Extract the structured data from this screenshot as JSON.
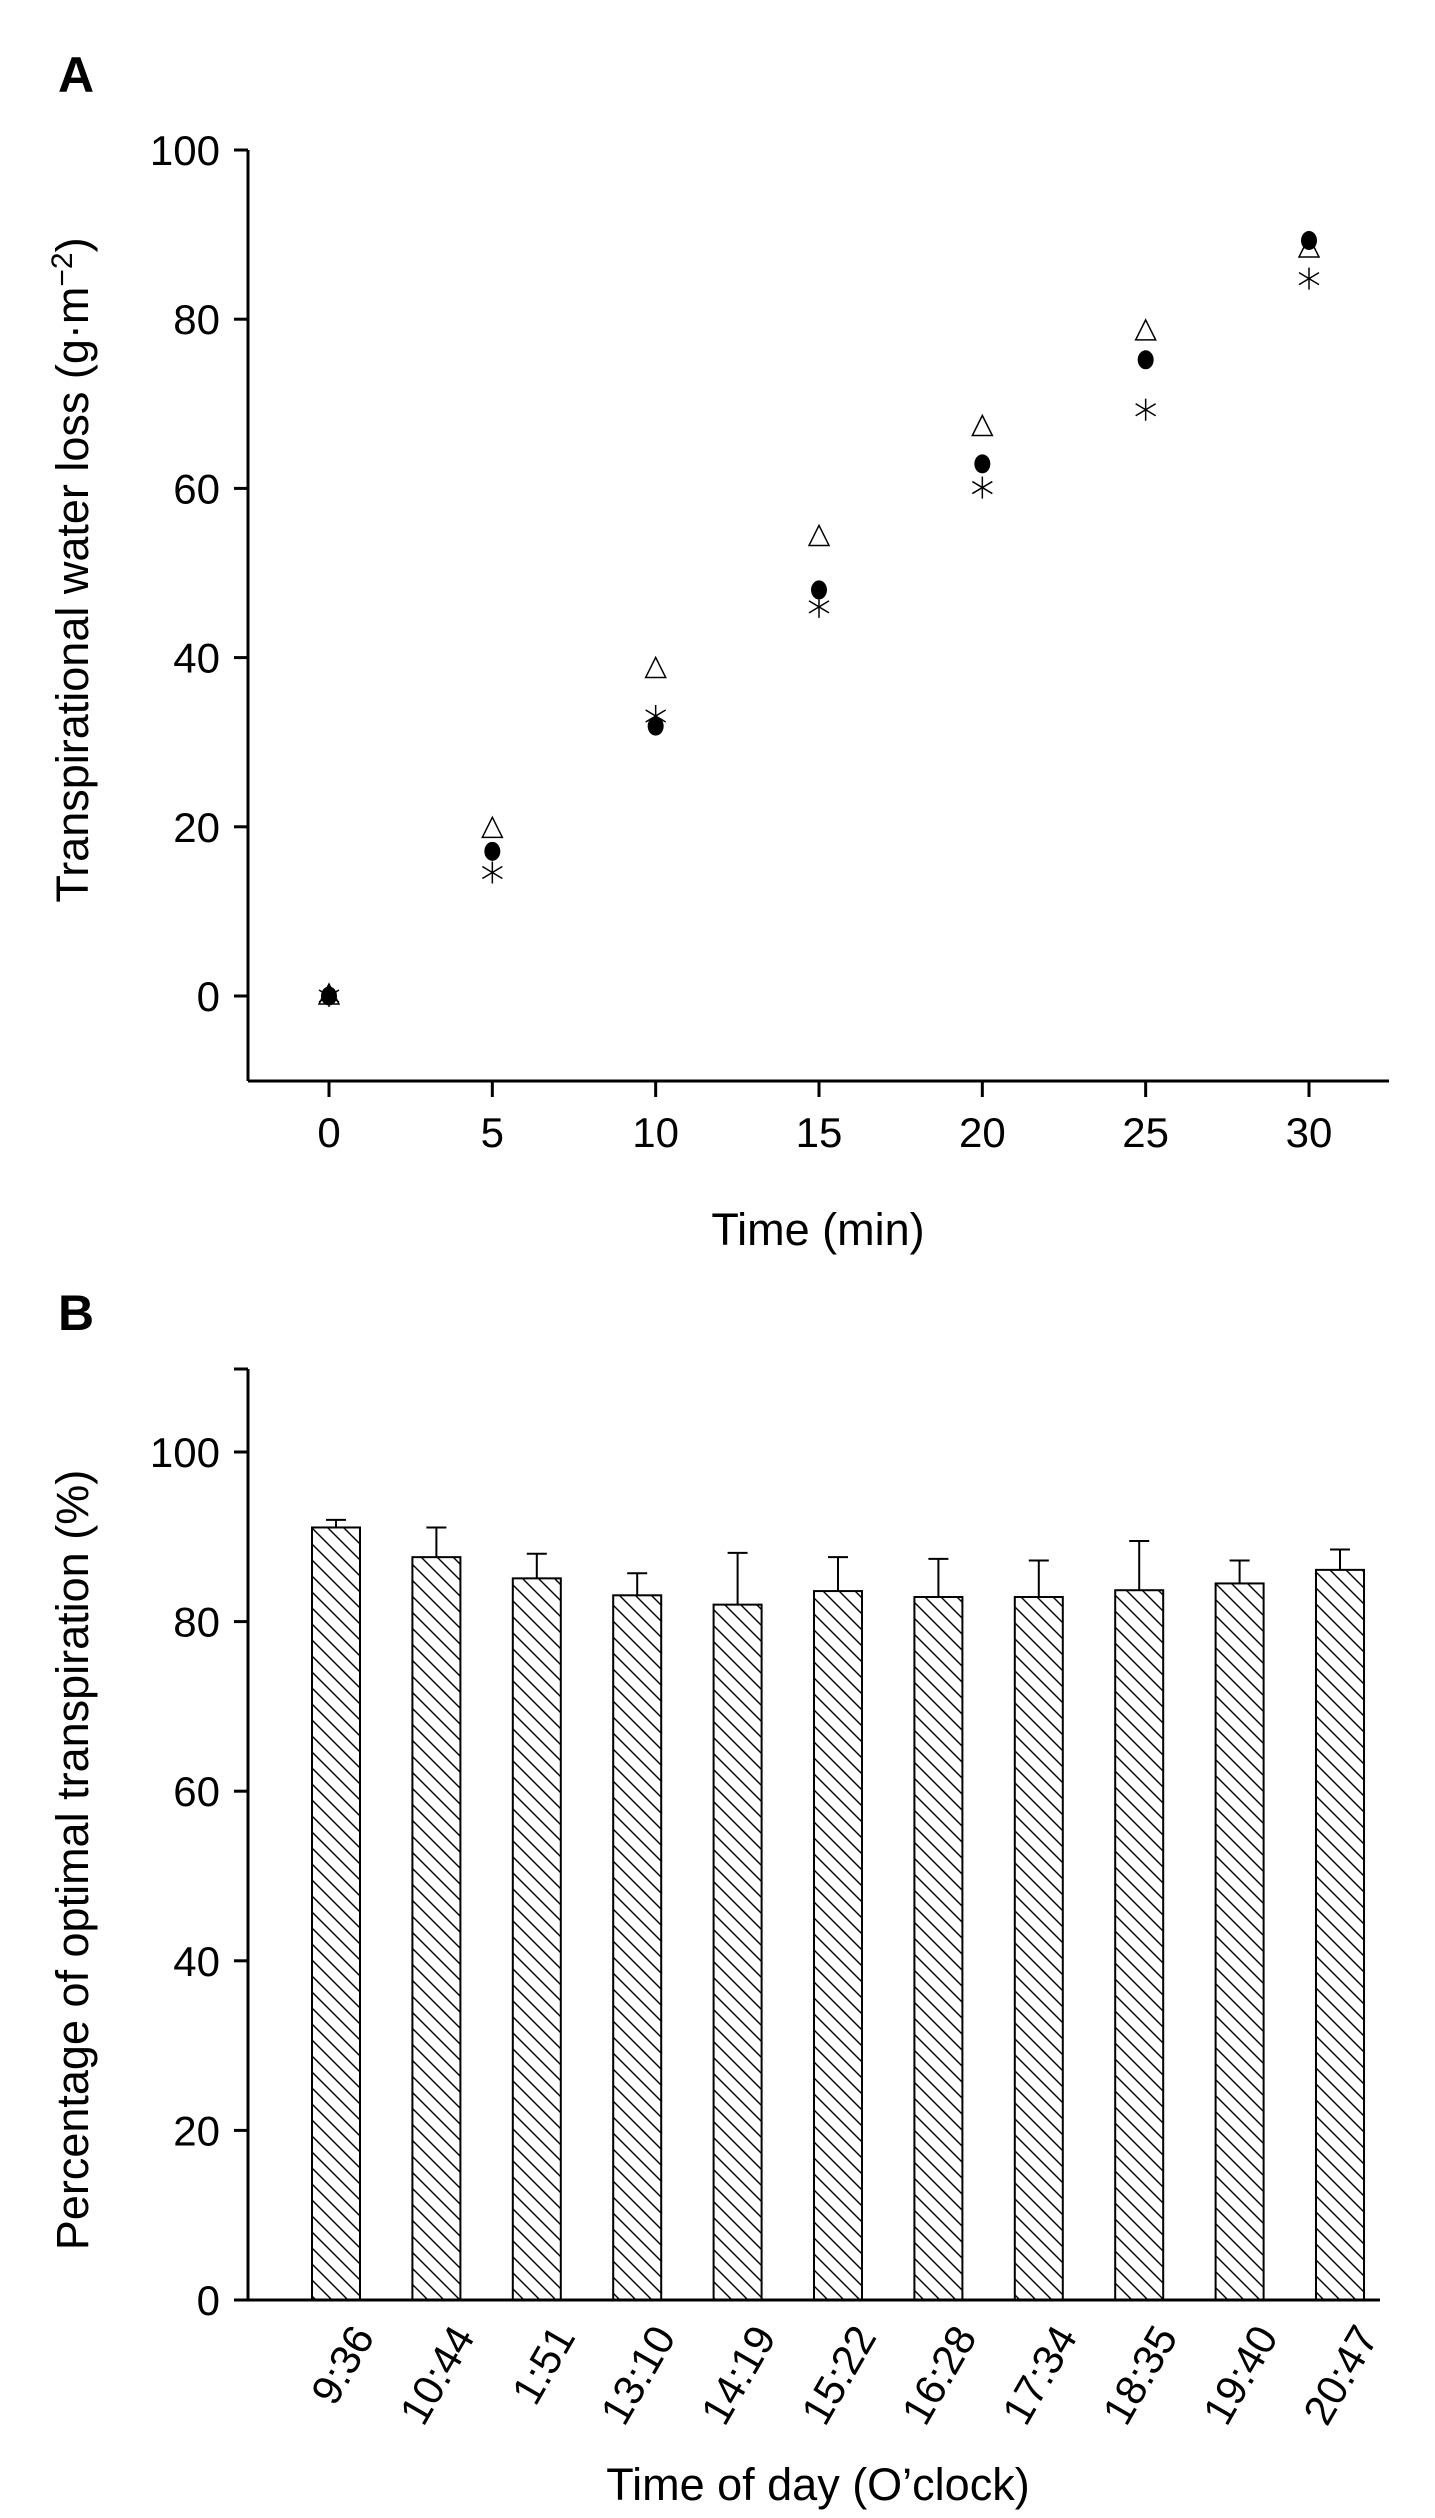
{
  "chart_data": [
    {
      "type": "scatter",
      "panel_label": "A",
      "title": "",
      "xlabel": "Time (min)",
      "ylabel": "Transpirational water loss (g·m⁻²)",
      "ylabel_parts": {
        "main": "Transpirational water loss (g·m",
        "sup": "−2",
        "end": ")"
      },
      "xlim": [
        -3.5,
        32.5
      ],
      "ylim": [
        -10,
        100
      ],
      "xticks": [
        0,
        5,
        10,
        15,
        20,
        25,
        30
      ],
      "yticks": [
        0,
        20,
        40,
        60,
        80,
        100
      ],
      "x": [
        0,
        5,
        10,
        15,
        20,
        25,
        30
      ],
      "series": [
        {
          "name": "triangle",
          "marker": "open-triangle",
          "values": [
            0,
            19.7,
            38.6,
            54.2,
            67.2,
            78.5,
            88.3
          ]
        },
        {
          "name": "circle",
          "marker": "filled-circle",
          "values": [
            0,
            17.1,
            31.9,
            48.0,
            62.9,
            75.2,
            89.3
          ]
        },
        {
          "name": "asterisk",
          "marker": "asterisk",
          "values": [
            0,
            14.6,
            33.1,
            46.0,
            60.1,
            69.3,
            84.8
          ]
        }
      ],
      "grid": false,
      "legend": "none"
    },
    {
      "type": "bar",
      "panel_label": "B",
      "title": "",
      "xlabel": "Time of day (O’clock)",
      "ylabel": "Percentage of optimal transpiration (%)",
      "ylim": [
        0,
        110
      ],
      "yticks": [
        0,
        20,
        40,
        60,
        80,
        100
      ],
      "categories": [
        "9:36",
        "10:44",
        "1:51",
        "13:10",
        "14:19",
        "15:22",
        "16:28",
        "17:34",
        "18:35",
        "19:40",
        "20:47"
      ],
      "values": [
        91.1,
        87.6,
        85.1,
        83.1,
        82.0,
        83.6,
        82.9,
        82.9,
        83.7,
        84.5,
        86.1
      ],
      "error_upper": [
        0.9,
        3.5,
        2.9,
        2.6,
        6.1,
        4.0,
        4.5,
        4.3,
        5.8,
        2.7,
        2.4
      ],
      "fill": "diagonal-hatch",
      "grid": false,
      "legend": "none"
    }
  ]
}
